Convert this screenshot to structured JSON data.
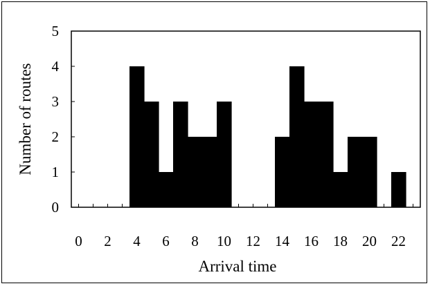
{
  "chart_data": {
    "type": "bar",
    "title": "",
    "xlabel": "Arrival time",
    "ylabel": "Number of routes",
    "x": [
      0,
      1,
      2,
      3,
      4,
      5,
      6,
      7,
      8,
      9,
      10,
      11,
      12,
      13,
      14,
      15,
      16,
      17,
      18,
      19,
      20,
      21,
      22,
      23
    ],
    "values": [
      0,
      0,
      0,
      0,
      4,
      3,
      1,
      3,
      2,
      2,
      3,
      0,
      0,
      0,
      2,
      4,
      3,
      3,
      1,
      2,
      2,
      0,
      1,
      0
    ],
    "xticks": [
      "0",
      "2",
      "4",
      "6",
      "8",
      "10",
      "12",
      "14",
      "16",
      "18",
      "20",
      "22"
    ],
    "yticks": [
      "0",
      "1",
      "2",
      "3",
      "4",
      "5"
    ],
    "xlim": [
      -0.5,
      23.5
    ],
    "ylim": [
      0,
      5
    ],
    "bar_color": "#000000",
    "grid": false,
    "legend": "none"
  }
}
